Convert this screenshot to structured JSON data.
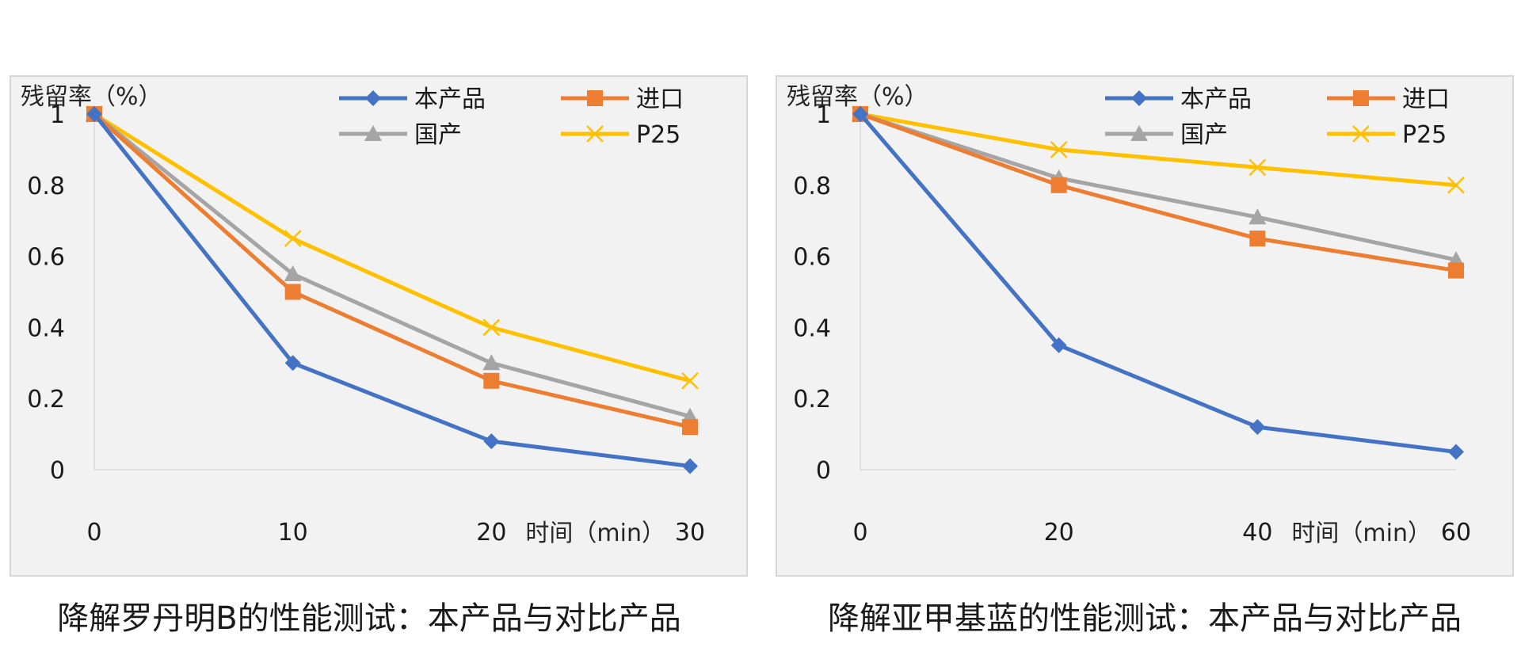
{
  "chart_data": [
    {
      "type": "line",
      "title": "降解罗丹明B的性能测试：本产品与对比产品",
      "ylabel": "残留率（%）",
      "xlabel": "时间（min）",
      "x": [
        0,
        10,
        20,
        30
      ],
      "x_ticks": [
        "0",
        "10",
        "20",
        "30"
      ],
      "y_ticks": [
        "0",
        "0.2",
        "0.4",
        "0.6",
        "0.8",
        "1"
      ],
      "ylim": [
        0,
        1
      ],
      "grid": false,
      "legend": "top-right",
      "series": [
        {
          "name": "本产品",
          "values": [
            1,
            0.3,
            0.08,
            0.01
          ],
          "color": "#4472c4",
          "marker": "diamond"
        },
        {
          "name": "进口",
          "values": [
            1,
            0.5,
            0.25,
            0.12
          ],
          "color": "#ed7d31",
          "marker": "square"
        },
        {
          "name": "国产",
          "values": [
            1,
            0.55,
            0.3,
            0.15
          ],
          "color": "#a5a5a5",
          "marker": "triangle"
        },
        {
          "name": "P25",
          "values": [
            1,
            0.65,
            0.4,
            0.25
          ],
          "color": "#ffc000",
          "marker": "x"
        }
      ]
    },
    {
      "type": "line",
      "title": "降解亚甲基蓝的性能测试：本产品与对比产品",
      "ylabel": "残留率（%）",
      "xlabel": "时间（min）",
      "x": [
        0,
        20,
        40,
        60
      ],
      "x_ticks": [
        "0",
        "20",
        "40",
        "60"
      ],
      "y_ticks": [
        "0",
        "0.2",
        "0.4",
        "0.6",
        "0.8",
        "1"
      ],
      "ylim": [
        0,
        1
      ],
      "grid": false,
      "legend": "top-right",
      "series": [
        {
          "name": "本产品",
          "values": [
            1,
            0.35,
            0.12,
            0.05
          ],
          "color": "#4472c4",
          "marker": "diamond"
        },
        {
          "name": "进口",
          "values": [
            1,
            0.8,
            0.65,
            0.56
          ],
          "color": "#ed7d31",
          "marker": "square"
        },
        {
          "name": "国产",
          "values": [
            1,
            0.82,
            0.71,
            0.59
          ],
          "color": "#a5a5a5",
          "marker": "triangle"
        },
        {
          "name": "P25",
          "values": [
            1,
            0.9,
            0.85,
            0.8
          ],
          "color": "#ffc000",
          "marker": "x"
        }
      ]
    }
  ]
}
